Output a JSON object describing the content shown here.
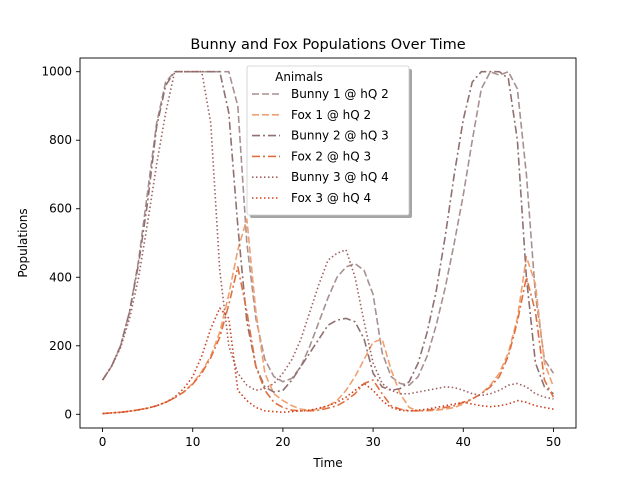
{
  "chart_data": {
    "type": "line",
    "title": "Bunny and Fox Populations Over Time",
    "xlabel": "Time",
    "ylabel": "Populations",
    "xlim": [
      -2.5,
      52.5
    ],
    "ylim": [
      -40,
      1040
    ],
    "xticks": [
      0,
      10,
      20,
      30,
      40,
      50
    ],
    "yticks": [
      0,
      200,
      400,
      600,
      800,
      1000
    ],
    "grid": false,
    "legend": {
      "title": "Animals",
      "placement": "top-center"
    },
    "series": [
      {
        "name": "Bunny 1 @ hQ 2",
        "color": "#a89090",
        "dash": "dashed",
        "x": [
          0,
          1,
          2,
          3,
          4,
          5,
          6,
          7,
          8,
          9,
          10,
          11,
          12,
          13,
          14,
          15,
          16,
          17,
          18,
          19,
          20,
          21,
          22,
          23,
          24,
          25,
          26,
          27,
          28,
          29,
          30,
          31,
          32,
          33,
          34,
          35,
          36,
          37,
          38,
          39,
          40,
          41,
          42,
          43,
          44,
          45,
          46,
          47,
          48,
          49,
          50
        ],
        "y": [
          100,
          140,
          200,
          300,
          450,
          650,
          850,
          970,
          1000,
          1000,
          1000,
          1000,
          1000,
          1000,
          1000,
          900,
          500,
          280,
          160,
          110,
          95,
          105,
          140,
          200,
          270,
          340,
          400,
          430,
          440,
          420,
          350,
          180,
          110,
          90,
          85,
          110,
          170,
          260,
          370,
          500,
          640,
          800,
          950,
          1000,
          990,
          1000,
          950,
          700,
          350,
          160,
          120
        ]
      },
      {
        "name": "Fox 1 @ hQ 2",
        "color": "#f0a070",
        "dash": "dashed",
        "x": [
          0,
          1,
          2,
          3,
          4,
          5,
          6,
          7,
          8,
          9,
          10,
          11,
          12,
          13,
          14,
          15,
          16,
          17,
          18,
          19,
          20,
          21,
          22,
          23,
          24,
          25,
          26,
          27,
          28,
          29,
          30,
          31,
          32,
          33,
          34,
          35,
          36,
          37,
          38,
          39,
          40,
          41,
          42,
          43,
          44,
          45,
          46,
          47,
          48,
          49,
          50
        ],
        "y": [
          2,
          4,
          6,
          9,
          13,
          18,
          25,
          35,
          48,
          65,
          90,
          125,
          170,
          240,
          350,
          480,
          570,
          300,
          120,
          60,
          40,
          25,
          15,
          12,
          15,
          25,
          40,
          70,
          110,
          160,
          210,
          220,
          130,
          60,
          20,
          10,
          10,
          12,
          15,
          20,
          30,
          45,
          60,
          85,
          120,
          180,
          280,
          460,
          380,
          150,
          80
        ]
      },
      {
        "name": "Bunny 2 @ hQ 3",
        "color": "#907070",
        "dash": "dashdot",
        "x": [
          0,
          1,
          2,
          3,
          4,
          5,
          6,
          7,
          8,
          9,
          10,
          11,
          12,
          13,
          14,
          15,
          16,
          17,
          18,
          19,
          20,
          21,
          22,
          23,
          24,
          25,
          26,
          27,
          28,
          29,
          30,
          31,
          32,
          33,
          34,
          35,
          36,
          37,
          38,
          39,
          40,
          41,
          42,
          43,
          44,
          45,
          46,
          47,
          48,
          49,
          50
        ],
        "y": [
          100,
          140,
          200,
          300,
          440,
          620,
          840,
          960,
          1000,
          1000,
          1000,
          1000,
          1000,
          1000,
          880,
          550,
          270,
          140,
          80,
          65,
          70,
          100,
          140,
          180,
          220,
          260,
          275,
          280,
          270,
          220,
          120,
          80,
          70,
          75,
          95,
          150,
          240,
          360,
          520,
          700,
          860,
          970,
          1000,
          1000,
          1000,
          980,
          800,
          400,
          150,
          80,
          60
        ]
      },
      {
        "name": "Fox 2 @ hQ 3",
        "color": "#e07040",
        "dash": "dashdot",
        "x": [
          0,
          1,
          2,
          3,
          4,
          5,
          6,
          7,
          8,
          9,
          10,
          11,
          12,
          13,
          14,
          15,
          16,
          17,
          18,
          19,
          20,
          21,
          22,
          23,
          24,
          25,
          26,
          27,
          28,
          29,
          30,
          31,
          32,
          33,
          34,
          35,
          36,
          37,
          38,
          39,
          40,
          41,
          42,
          43,
          44,
          45,
          46,
          47,
          48,
          49,
          50
        ],
        "y": [
          2,
          4,
          6,
          9,
          13,
          18,
          25,
          35,
          48,
          65,
          88,
          120,
          165,
          225,
          320,
          430,
          300,
          140,
          70,
          35,
          20,
          12,
          10,
          10,
          12,
          18,
          25,
          40,
          60,
          90,
          100,
          60,
          25,
          15,
          10,
          10,
          12,
          15,
          20,
          25,
          35,
          45,
          60,
          80,
          110,
          170,
          270,
          400,
          300,
          100,
          50
        ]
      },
      {
        "name": "Bunny 3 @ hQ 4",
        "color": "#a06060",
        "dash": "dotted",
        "x": [
          0,
          1,
          2,
          3,
          4,
          5,
          6,
          7,
          8,
          9,
          10,
          11,
          12,
          13,
          14,
          15,
          16,
          17,
          18,
          19,
          20,
          21,
          22,
          23,
          24,
          25,
          26,
          27,
          28,
          29,
          30,
          31,
          32,
          33,
          34,
          35,
          36,
          37,
          38,
          39,
          40,
          41,
          42,
          43,
          44,
          45,
          46,
          47,
          48,
          49,
          50
        ],
        "y": [
          100,
          140,
          195,
          280,
          400,
          560,
          730,
          880,
          1000,
          1000,
          1000,
          1000,
          850,
          420,
          200,
          120,
          85,
          70,
          75,
          90,
          120,
          160,
          220,
          300,
          380,
          450,
          470,
          480,
          400,
          270,
          150,
          90,
          70,
          60,
          60,
          65,
          70,
          75,
          80,
          78,
          70,
          60,
          55,
          60,
          70,
          85,
          90,
          80,
          60,
          50,
          45
        ]
      },
      {
        "name": "Fox 3 @ hQ 4",
        "color": "#d04020",
        "dash": "dotted",
        "x": [
          0,
          1,
          2,
          3,
          4,
          5,
          6,
          7,
          8,
          9,
          10,
          11,
          12,
          13,
          14,
          15,
          16,
          17,
          18,
          19,
          20,
          21,
          22,
          23,
          24,
          25,
          26,
          27,
          28,
          29,
          30,
          31,
          32,
          33,
          34,
          35,
          36,
          37,
          38,
          39,
          40,
          41,
          42,
          43,
          44,
          45,
          46,
          47,
          48,
          49,
          50
        ],
        "y": [
          2,
          4,
          6,
          9,
          13,
          18,
          25,
          35,
          50,
          75,
          110,
          170,
          250,
          310,
          280,
          70,
          40,
          20,
          10,
          8,
          6,
          8,
          10,
          12,
          18,
          25,
          35,
          50,
          70,
          90,
          70,
          40,
          20,
          12,
          10,
          12,
          15,
          20,
          25,
          30,
          35,
          30,
          25,
          22,
          25,
          30,
          40,
          35,
          25,
          20,
          15
        ]
      }
    ]
  }
}
